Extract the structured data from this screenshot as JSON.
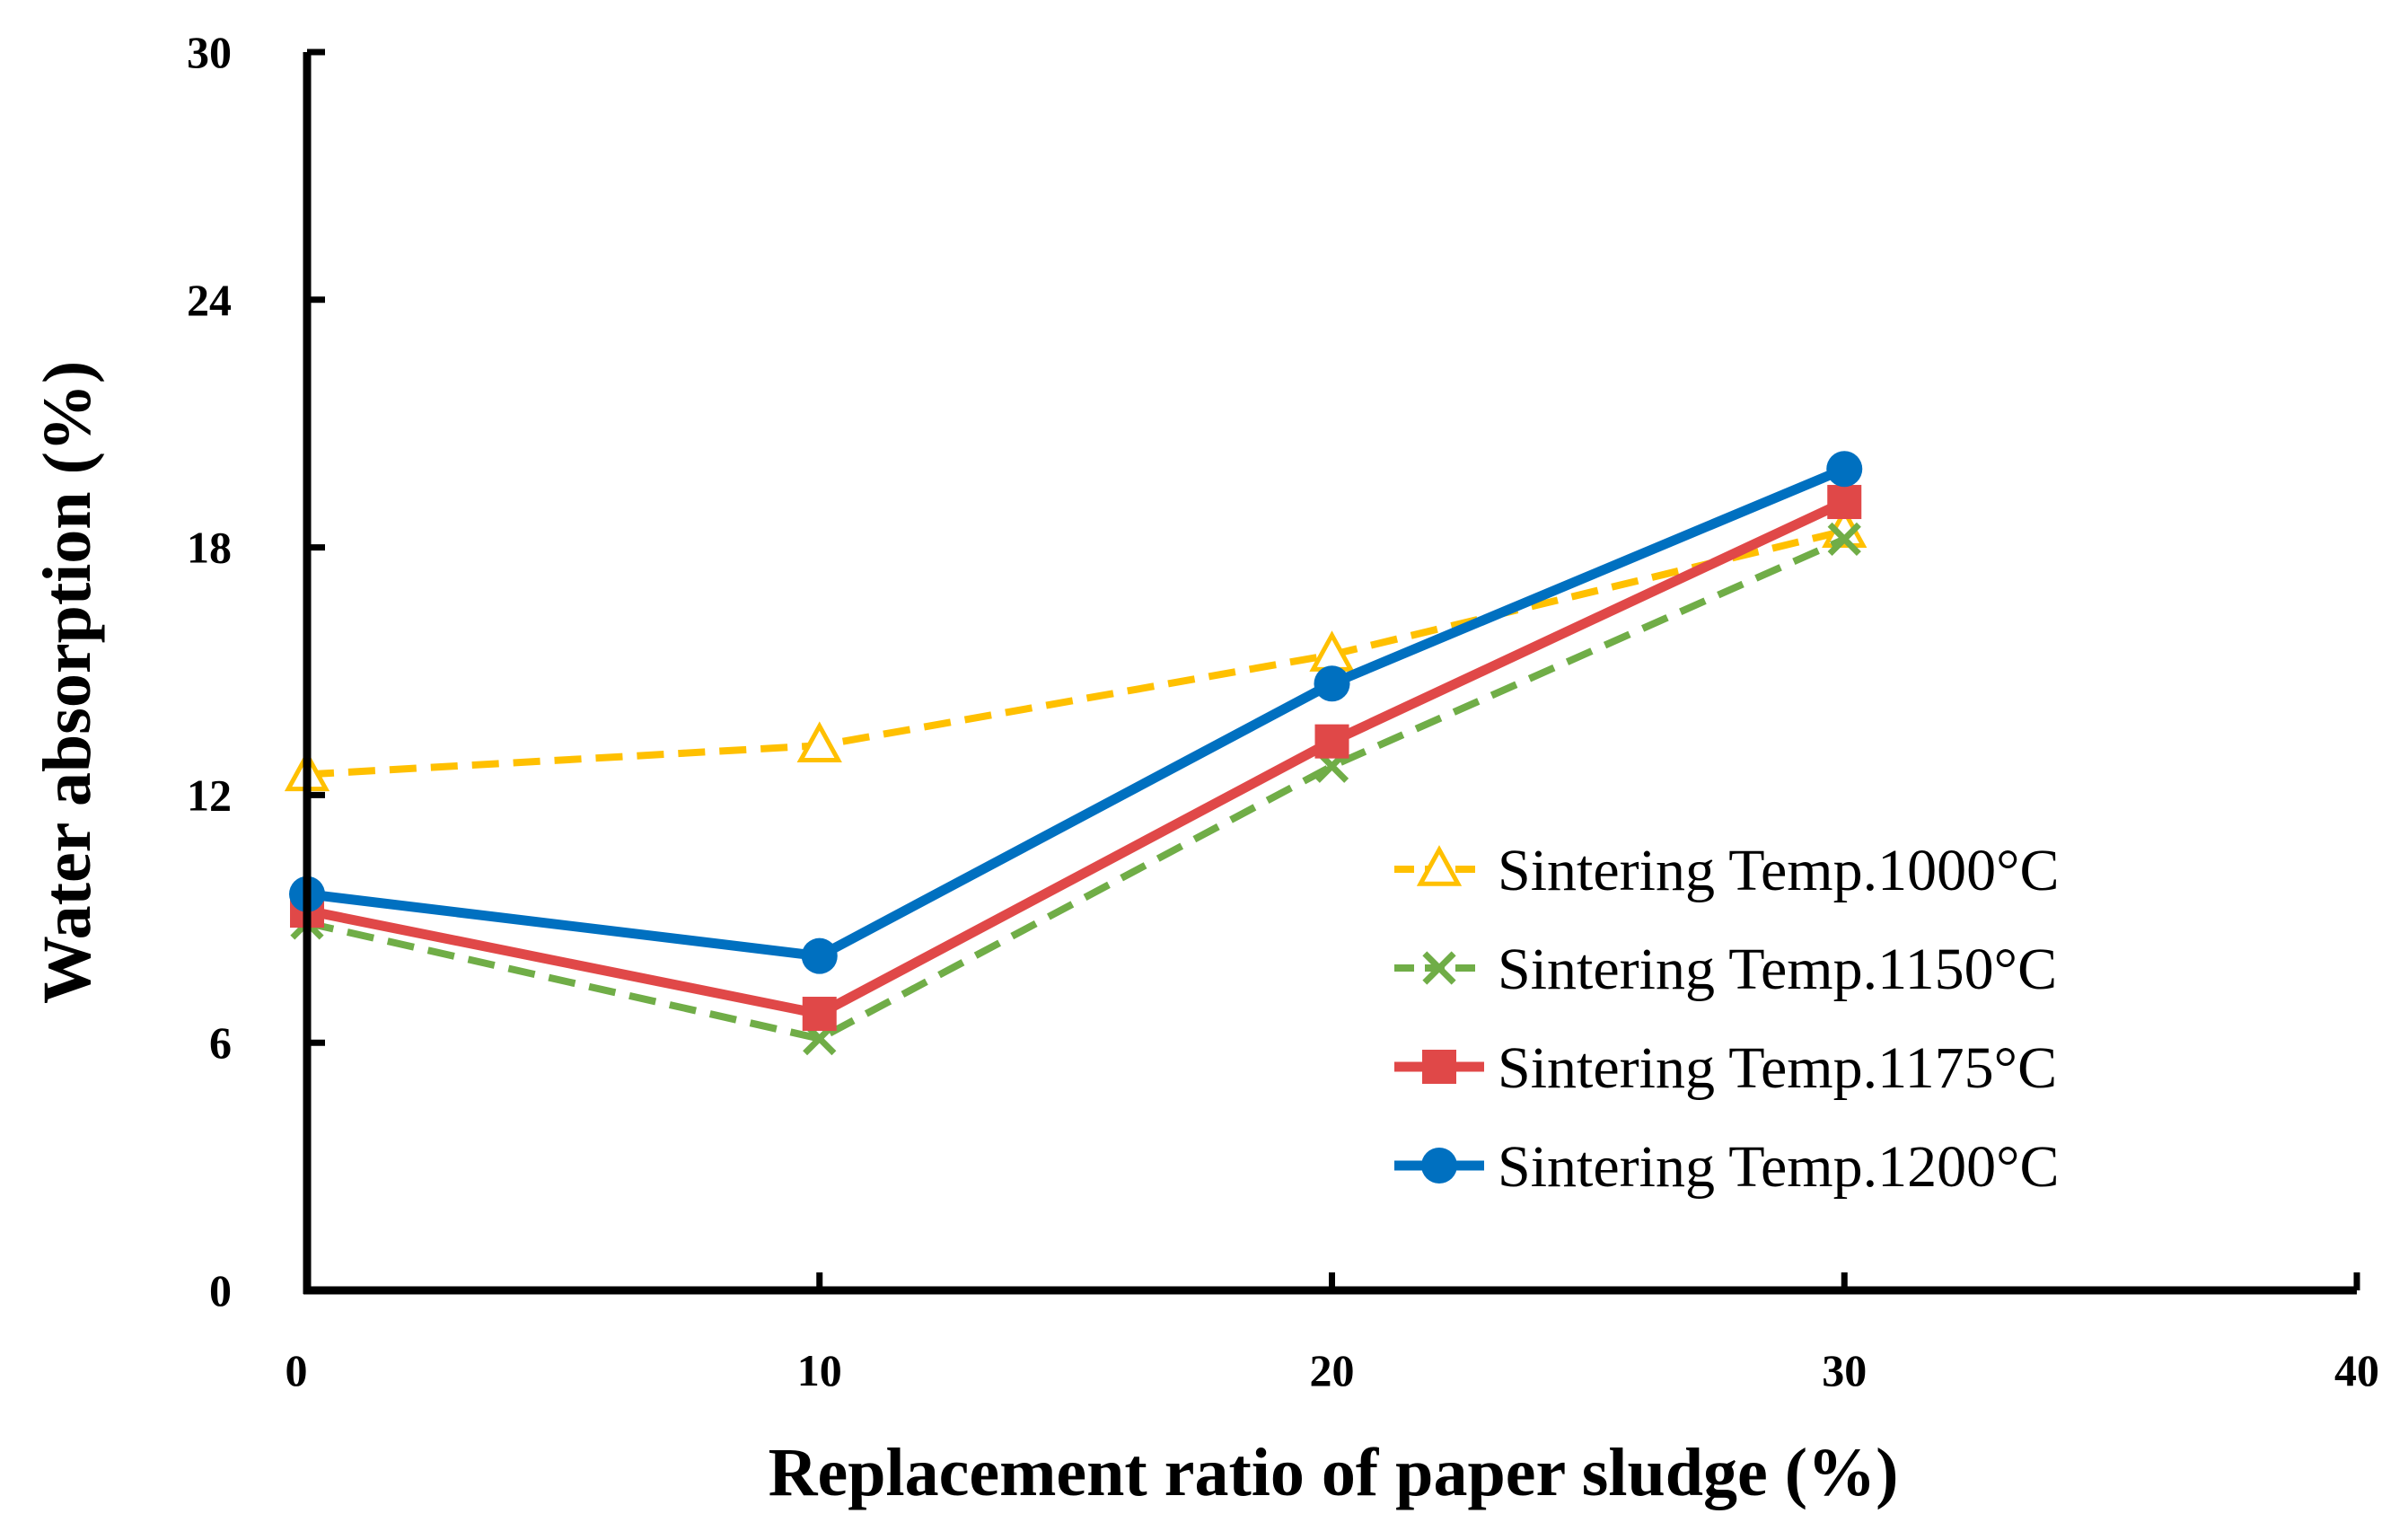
{
  "chart_data": {
    "type": "line",
    "title": "",
    "xlabel": "Replacement ratio of paper sludge (%)",
    "ylabel": "Water absorption (%)",
    "xlim": [
      0,
      40
    ],
    "ylim": [
      0,
      30
    ],
    "xticks": [
      0,
      10,
      20,
      30,
      40
    ],
    "yticks": [
      0,
      6,
      12,
      18,
      24,
      30
    ],
    "grid": false,
    "legend_position": "right",
    "x": [
      0,
      10,
      20,
      30
    ],
    "series": [
      {
        "name": "Sintering Temp.1000°C",
        "values": [
          12.5,
          13.2,
          15.4,
          18.4
        ],
        "color": "#FFC000",
        "dash": "dashed",
        "marker": "triangle-open"
      },
      {
        "name": "Sintering Temp.1150°C",
        "values": [
          8.9,
          6.1,
          12.7,
          18.2
        ],
        "color": "#70AD47",
        "dash": "dashed",
        "marker": "x"
      },
      {
        "name": "Sintering Temp.1175°C",
        "values": [
          9.2,
          6.7,
          13.3,
          19.1
        ],
        "color": "#E04848",
        "dash": "solid",
        "marker": "square"
      },
      {
        "name": "Sintering Temp.1200°C",
        "values": [
          9.6,
          8.1,
          14.7,
          19.9
        ],
        "color": "#0070C0",
        "dash": "solid",
        "marker": "circle"
      }
    ]
  }
}
